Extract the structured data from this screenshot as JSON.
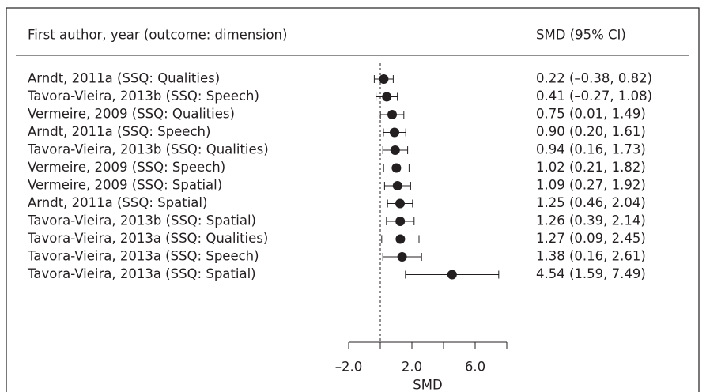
{
  "chart_data": {
    "type": "forest",
    "header_left": "First author, year (outcome: dimension)",
    "header_right": "SMD (95% CI)",
    "x_label": "SMD",
    "categories": [
      "Arndt, 2011a (SSQ: Qualities)",
      "Tavora-Vieira, 2013b (SSQ: Speech)",
      "Vermeire, 2009 (SSQ: Qualities)",
      "Arndt, 2011a (SSQ: Speech)",
      "Tavora-Vieira, 2013b (SSQ: Qualities)",
      "Vermeire, 2009 (SSQ: Speech)",
      "Vermeire, 2009 (SSQ: Spatial)",
      "Arndt, 2011a (SSQ: Spatial)",
      "Tavora-Vieira, 2013b (SSQ: Spatial)",
      "Tavora-Vieira, 2013a (SSQ: Qualities)",
      "Tavora-Vieira, 2013a (SSQ: Speech)",
      "Tavora-Vieira, 2013a (SSQ: Spatial)"
    ],
    "values": [
      0.22,
      0.41,
      0.75,
      0.9,
      0.94,
      1.02,
      1.09,
      1.25,
      1.26,
      1.27,
      1.38,
      4.54
    ],
    "ci_lower": [
      -0.38,
      -0.27,
      0.01,
      0.2,
      0.16,
      0.21,
      0.27,
      0.46,
      0.39,
      0.09,
      0.16,
      1.59
    ],
    "ci_upper": [
      0.82,
      1.08,
      1.49,
      1.61,
      1.73,
      1.82,
      1.92,
      2.04,
      2.14,
      2.45,
      2.61,
      7.49
    ],
    "value_labels": [
      "0.22 (–0.38, 0.82)",
      "0.41 (–0.27, 1.08)",
      "0.75 (0.01, 1.49)",
      "0.90 (0.20, 1.61)",
      "0.94 (0.16, 1.73)",
      "1.02 (0.21, 1.82)",
      "1.09 (0.27, 1.92)",
      "1.25 (0.46, 2.04)",
      "1.26 (0.39, 2.14)",
      "1.27 (0.09, 2.45)",
      "1.38 (0.16, 2.61)",
      "4.54 (1.59, 7.49)"
    ],
    "color": "#231f20",
    "xlim": [
      -2,
      8
    ],
    "xticks": [
      {
        "value": -2,
        "label": "–2.0"
      },
      {
        "value": 2,
        "label": "2.0"
      },
      {
        "value": 6,
        "label": "6.0"
      }
    ],
    "xminorticks": [
      0,
      4,
      8
    ],
    "reference_line": 0
  }
}
